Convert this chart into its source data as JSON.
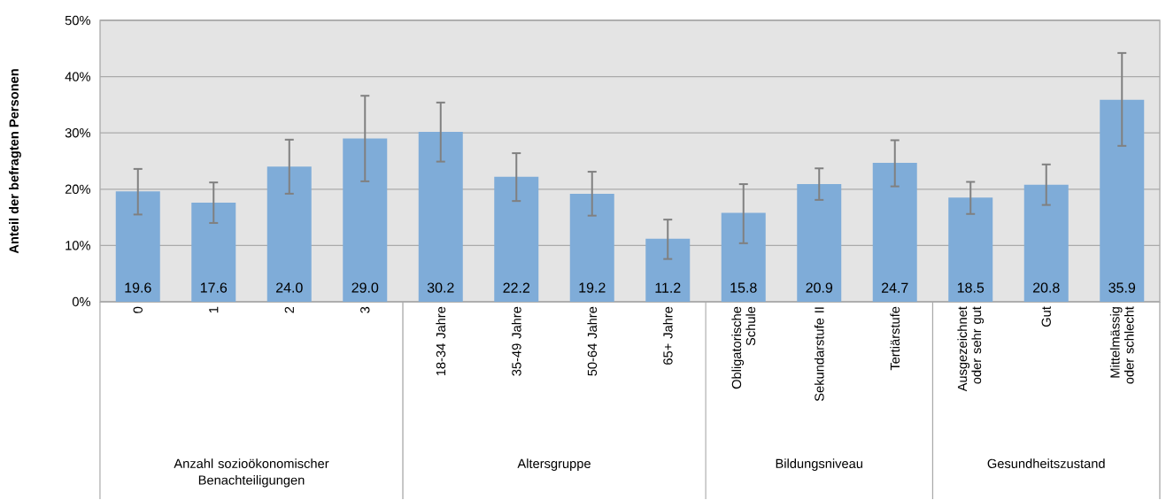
{
  "chart_data": {
    "type": "bar",
    "ylabel": "Anteil der befragten Personen",
    "categories": [
      "0",
      "1",
      "2",
      "3",
      "18-34 Jahre",
      "35-49 Jahre",
      "50-64 Jahre",
      "65+ Jahre",
      "Obligatorische Schule",
      "Sekundarstufe II",
      "Tertiärstufe",
      "Ausgezeichnet oder sehr gut",
      "Gut",
      "Mittelmässig oder schlecht"
    ],
    "values": [
      19.6,
      17.6,
      24.0,
      29.0,
      30.2,
      22.2,
      19.2,
      11.2,
      15.8,
      20.9,
      24.7,
      18.5,
      20.8,
      35.9
    ],
    "value_labels": [
      "19.6",
      "17.6",
      "24.0",
      "29.0",
      "30.2",
      "22.2",
      "19.2",
      "11.2",
      "15.8",
      "20.9",
      "24.7",
      "18.5",
      "20.8",
      "35.9"
    ],
    "errors": [
      [
        15.5,
        23.6
      ],
      [
        14.0,
        21.2
      ],
      [
        19.2,
        28.8
      ],
      [
        21.4,
        36.6
      ],
      [
        24.9,
        35.4
      ],
      [
        17.9,
        26.4
      ],
      [
        15.3,
        23.1
      ],
      [
        7.6,
        14.6
      ],
      [
        10.4,
        20.9
      ],
      [
        18.1,
        23.7
      ],
      [
        20.5,
        28.7
      ],
      [
        15.6,
        21.3
      ],
      [
        17.2,
        24.4
      ],
      [
        27.7,
        44.2
      ]
    ],
    "color": "#7facd8",
    "ylim": [
      0,
      50
    ],
    "yticks": [
      {
        "value": 0,
        "label": "0%"
      },
      {
        "value": 10,
        "label": "10%"
      },
      {
        "value": 20,
        "label": "20%"
      },
      {
        "value": 30,
        "label": "30%"
      },
      {
        "value": 40,
        "label": "40%"
      },
      {
        "value": 50,
        "label": "50%"
      }
    ],
    "grid": "y",
    "annotations": [
      "Anzahl sozioökonomischer Benachteiligungen",
      "Altersgruppe",
      "Bildungsniveau",
      "Gesundheitszustand"
    ]
  }
}
